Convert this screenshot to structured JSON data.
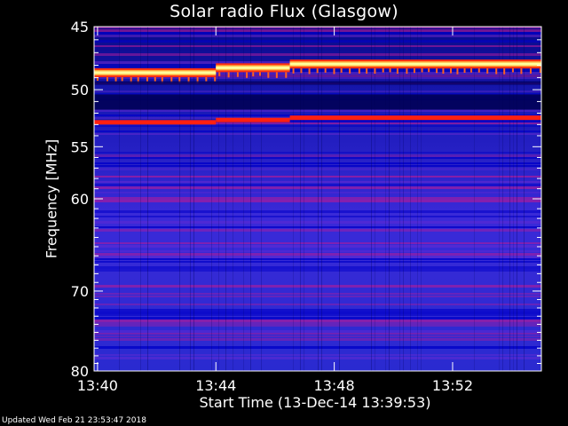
{
  "chart_data": {
    "type": "heatmap",
    "title": "Solar radio Flux (Glasgow)",
    "xlabel": "Start Time (13-Dec-14 13:39:53)",
    "ylabel": "Frequency [MHz]",
    "x_ticks": [
      "13:40",
      "13:44",
      "13:48",
      "13:52"
    ],
    "x_range": [
      "13:39:53",
      "13:55:00"
    ],
    "y_ticks": [
      45,
      50,
      55,
      60,
      70,
      80
    ],
    "y_range": [
      45,
      80
    ],
    "y_scale": "log",
    "y_inverted": true,
    "grid": false,
    "colormap": [
      "#00005a",
      "#0000c8",
      "#3228e6",
      "#6e2ad2",
      "#b01c9a",
      "#ff2010",
      "#ff8c28",
      "#ffff9c"
    ],
    "features": [
      {
        "name": "interference-band",
        "frequency_mhz": [
          48.6,
          48.2,
          47.9
        ],
        "intensity": "very high",
        "color": "#ffff9c"
      },
      {
        "name": "interference-band",
        "frequency_mhz": [
          52.8,
          52.6,
          52.4
        ],
        "intensity": "high",
        "color": "#ff2010"
      },
      {
        "name": "dark-band",
        "frequency_mhz": [
          50.4,
          51.7
        ],
        "intensity": "low"
      }
    ]
  },
  "footer": {
    "updated": "Updated Wed Feb 21 23:53:47 2018"
  }
}
